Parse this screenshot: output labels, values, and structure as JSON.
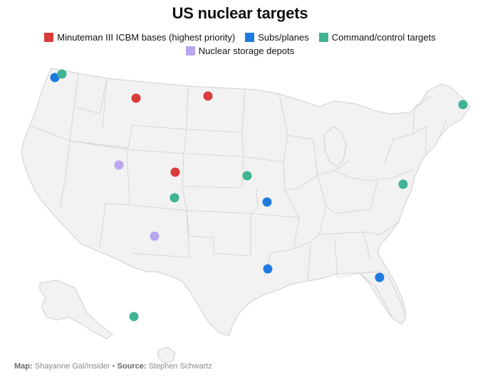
{
  "title": "US nuclear targets",
  "legend": [
    {
      "label": "Minuteman III ICBM bases (highest priority)",
      "color": "#d93b3b",
      "key": "icbm"
    },
    {
      "label": "Subs/planes",
      "color": "#1f7ae0",
      "key": "subs"
    },
    {
      "label": "Command/control targets",
      "color": "#3fb393",
      "key": "command"
    },
    {
      "label": "Nuclear storage depots",
      "color": "#b9a6ef",
      "key": "storage"
    }
  ],
  "footer": {
    "map_label": "Map:",
    "map_value": "Shayanne Gal/Insider",
    "separator": "•",
    "source_label": "Source:",
    "source_value": "Stephen Schwartz"
  },
  "colors": {
    "land": "#f2f2f2",
    "border": "#cfcfcf"
  }
}
